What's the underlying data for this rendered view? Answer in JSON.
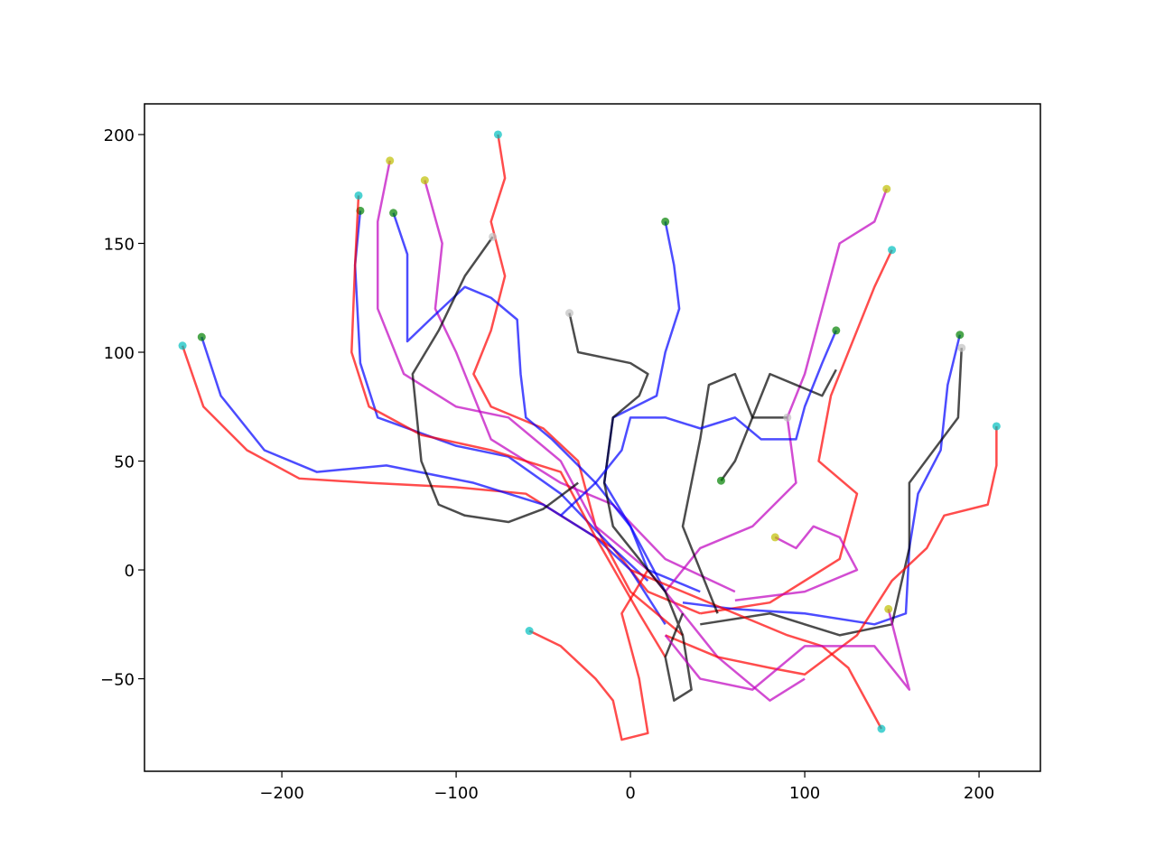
{
  "chart_data": {
    "type": "line",
    "xlim": [
      -278.8,
      235.2
    ],
    "ylim": [
      -92.5,
      214.1
    ],
    "xticks": [
      {
        "value": -200,
        "label": "−200"
      },
      {
        "value": -100,
        "label": "−100"
      },
      0,
      100,
      200
    ],
    "yticks": [
      {
        "value": -50,
        "label": "−50"
      },
      0,
      50,
      100,
      150,
      200
    ],
    "series": [
      {
        "color": "#ff0000",
        "marker_color": "#00bfbf",
        "x": [
          -257,
          -245,
          -220,
          -190,
          -150,
          -100,
          -60,
          -30,
          -10,
          10,
          40
        ],
        "y": [
          103,
          75,
          55,
          42,
          40,
          38,
          35,
          20,
          10,
          -10,
          -20
        ]
      },
      {
        "color": "#0000ff",
        "marker_color": "#008000",
        "x": [
          -246,
          -235,
          -210,
          -180,
          -140,
          -90,
          -50,
          -20,
          0,
          20
        ],
        "y": [
          107,
          80,
          55,
          45,
          48,
          40,
          30,
          15,
          0,
          -25
        ]
      },
      {
        "color": "#ff0000",
        "marker_color": "#00bfbf",
        "x": [
          -76,
          -72,
          -80,
          -72,
          -80,
          -90,
          -80,
          -50,
          -30,
          -20,
          0,
          30
        ],
        "y": [
          200,
          180,
          160,
          135,
          110,
          90,
          75,
          65,
          50,
          20,
          -10,
          -30
        ]
      },
      {
        "color": "#bf00bf",
        "marker_color": "#bfbf00",
        "x": [
          -138,
          -145,
          -145,
          -130,
          -100,
          -70,
          -40,
          -20,
          10,
          50,
          80,
          100
        ],
        "y": [
          188,
          160,
          120,
          90,
          75,
          70,
          50,
          20,
          0,
          -40,
          -60,
          -50
        ]
      },
      {
        "color": "#bf00bf",
        "marker_color": "#bfbf00",
        "x": [
          -118,
          -108,
          -112,
          -100,
          -80,
          -40,
          -10,
          20,
          60
        ],
        "y": [
          179,
          150,
          120,
          100,
          60,
          40,
          30,
          5,
          -10
        ]
      },
      {
        "color": "#0000ff",
        "marker_color": "#008000",
        "x": [
          -155,
          -158,
          -155,
          -145,
          -100,
          -70,
          -40,
          -10,
          10
        ],
        "y": [
          165,
          140,
          95,
          70,
          57,
          52,
          35,
          10,
          -5
        ]
      },
      {
        "color": "#ff0000",
        "marker_color": "#00bfbf",
        "x": [
          -156,
          -158,
          -160,
          -150,
          -120,
          -80,
          -40,
          -20,
          5,
          20
        ],
        "y": [
          172,
          140,
          100,
          75,
          62,
          55,
          45,
          15,
          -20,
          -40
        ]
      },
      {
        "color": "#0000ff",
        "marker_color": "#008000",
        "x": [
          -136,
          -128,
          -128,
          -115,
          -95,
          -80,
          -65,
          -63,
          -60,
          -45,
          -20,
          0,
          20
        ],
        "y": [
          164,
          145,
          105,
          115,
          130,
          125,
          115,
          90,
          70,
          60,
          40,
          20,
          -10
        ]
      },
      {
        "color": "#000000",
        "marker_color": "#c0c0c0",
        "x": [
          -79,
          -95,
          -110,
          -125,
          -120,
          -110,
          -95,
          -70,
          -50,
          -30
        ],
        "y": [
          153,
          135,
          110,
          90,
          50,
          30,
          25,
          22,
          28,
          40
        ]
      },
      {
        "color": "#0000ff",
        "marker_color": "#008000",
        "x": [
          20,
          25,
          28,
          20,
          15,
          -10,
          -15,
          0,
          10,
          40
        ],
        "y": [
          160,
          140,
          120,
          100,
          80,
          70,
          40,
          20,
          0,
          -10
        ]
      },
      {
        "color": "#bf00bf",
        "marker_color": "#bfbf00",
        "x": [
          147,
          140,
          120,
          110,
          100,
          90,
          95,
          70,
          40,
          20
        ],
        "y": [
          175,
          160,
          150,
          120,
          90,
          70,
          40,
          20,
          10,
          -10
        ]
      },
      {
        "color": "#ff0000",
        "marker_color": "#00bfbf",
        "x": [
          150,
          140,
          130,
          115,
          108,
          130,
          120,
          80,
          40
        ],
        "y": [
          147,
          130,
          110,
          80,
          50,
          35,
          5,
          -15,
          -20
        ]
      },
      {
        "color": "#0000ff",
        "marker_color": "#008000",
        "x": [
          189,
          182,
          178,
          165,
          160,
          158,
          140,
          100,
          60,
          30
        ],
        "y": [
          108,
          85,
          55,
          35,
          10,
          -20,
          -25,
          -20,
          -18,
          -15
        ]
      },
      {
        "color": "#000000",
        "marker_color": "#c0c0c0",
        "x": [
          190,
          188,
          160,
          160,
          150,
          120,
          80,
          40
        ],
        "y": [
          102,
          70,
          40,
          10,
          -25,
          -30,
          -20,
          -25
        ]
      },
      {
        "color": "#ff0000",
        "marker_color": "#00bfbf",
        "x": [
          210,
          210,
          205,
          180,
          170,
          150,
          130,
          100,
          80,
          50,
          20
        ],
        "y": [
          66,
          48,
          30,
          25,
          10,
          -5,
          -30,
          -48,
          -45,
          -40,
          -30
        ]
      },
      {
        "color": "#ff0000",
        "marker_color": "#00bfbf",
        "x": [
          144,
          125,
          110,
          90,
          60,
          30,
          0
        ],
        "y": [
          -73,
          -45,
          -35,
          -30,
          -20,
          -10,
          0
        ]
      },
      {
        "color": "#ff0000",
        "marker_color": "#00bfbf",
        "x": [
          -58,
          -40,
          -20,
          -10,
          -5,
          10,
          5,
          -5,
          10
        ],
        "y": [
          -28,
          -35,
          -50,
          -60,
          -78,
          -75,
          -50,
          -20,
          0
        ]
      },
      {
        "color": "#000000",
        "marker_color": "#c0c0c0",
        "x": [
          -35,
          -30,
          0,
          10,
          5,
          -10,
          -15,
          -10,
          0,
          20,
          30,
          35,
          25,
          20,
          30
        ],
        "y": [
          118,
          100,
          95,
          90,
          80,
          70,
          40,
          20,
          10,
          -10,
          -30,
          -55,
          -60,
          -40,
          -20
        ]
      },
      {
        "color": "#000000",
        "marker_color": "#c0c0c0",
        "x": [
          90,
          70,
          60,
          45,
          40,
          35,
          30,
          40,
          50
        ],
        "y": [
          70,
          70,
          90,
          85,
          60,
          40,
          20,
          0,
          -20
        ]
      },
      {
        "color": "#bf00bf",
        "marker_color": "#bfbf00",
        "x": [
          148,
          155,
          160,
          140,
          100,
          70,
          40,
          20
        ],
        "y": [
          -18,
          -40,
          -55,
          -35,
          -35,
          -55,
          -50,
          -30
        ]
      },
      {
        "color": "#000000",
        "marker_color": "#008000",
        "x": [
          52,
          60,
          70,
          80,
          95,
          110,
          118
        ],
        "y": [
          41,
          50,
          70,
          90,
          85,
          80,
          92
        ]
      },
      {
        "color": "#0000ff",
        "marker_color": "#008000",
        "x": [
          118,
          110,
          100,
          95,
          75,
          60,
          40,
          20,
          0,
          -5,
          -20,
          -40
        ],
        "y": [
          110,
          95,
          75,
          60,
          60,
          70,
          65,
          70,
          70,
          55,
          40,
          25
        ]
      },
      {
        "color": "#bf00bf",
        "marker_color": "#bfbf00",
        "x": [
          83,
          95,
          105,
          120,
          130,
          100,
          60
        ],
        "y": [
          15,
          10,
          20,
          15,
          0,
          -10,
          -14
        ]
      }
    ]
  }
}
